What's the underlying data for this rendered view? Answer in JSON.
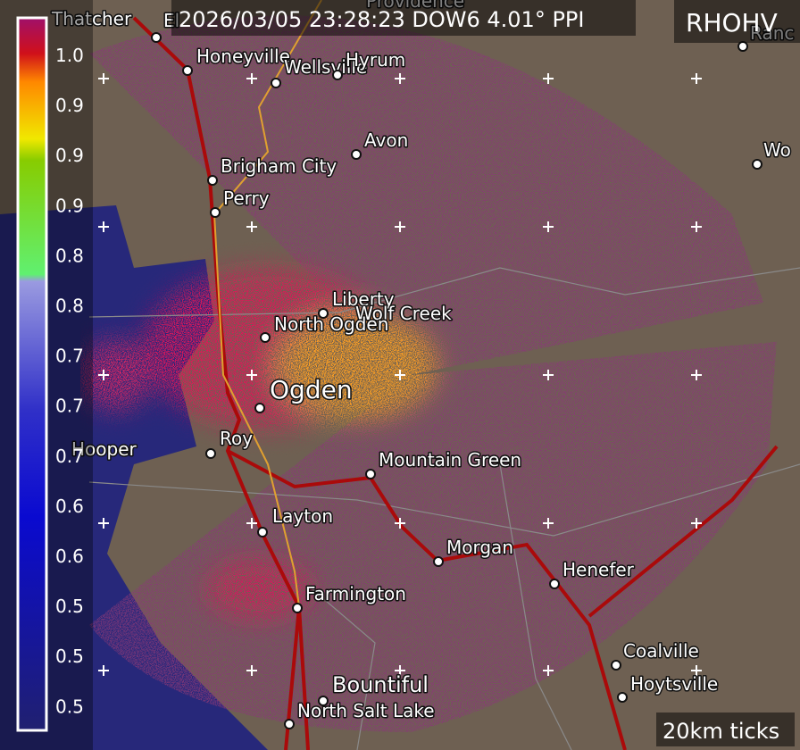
{
  "header": {
    "timestamp": "2026/03/05 23:28:23 DOW6 4.01° PPI",
    "product": "RHOHV"
  },
  "colorbar": {
    "labels": [
      "1.0",
      "0.9",
      "0.9",
      "0.9",
      "0.8",
      "0.8",
      "0.7",
      "0.7",
      "0.7",
      "0.6",
      "0.6",
      "0.5",
      "0.5",
      "0.5"
    ]
  },
  "places": [
    "Thatcher",
    "El",
    "Honeyville",
    "Wellsville",
    "Hyrum",
    "Providence",
    "Ranc",
    "Wo",
    "Avon",
    "Brigham City",
    "Perry",
    "Liberty",
    "Wolf Creek",
    "North Ogden",
    "Ogden",
    "Roy",
    "Hooper",
    "Mountain Green",
    "Layton",
    "Morgan",
    "Henefer",
    "Farmington",
    "Coalville",
    "Hoytsville",
    "Bountiful",
    "North Salt Lake"
  ],
  "footer": "20km ticks"
}
